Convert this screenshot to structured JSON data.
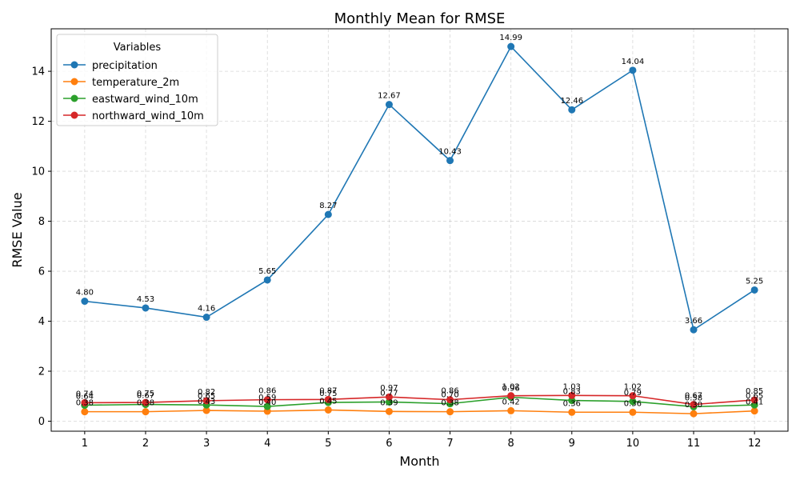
{
  "chart_data": {
    "type": "line",
    "title": "Monthly Mean for RMSE",
    "xlabel": "Month",
    "ylabel": "RMSE Value",
    "x": [
      1,
      2,
      3,
      4,
      5,
      6,
      7,
      8,
      9,
      10,
      11,
      12
    ],
    "x_tick_labels": [
      "1",
      "2",
      "3",
      "4",
      "5",
      "6",
      "7",
      "8",
      "9",
      "10",
      "11",
      "12"
    ],
    "ylim": [
      -0.4,
      15.7
    ],
    "y_ticks": [
      0,
      2,
      4,
      6,
      8,
      10,
      12,
      14
    ],
    "y_tick_labels": [
      "0",
      "2",
      "4",
      "6",
      "8",
      "10",
      "12",
      "14"
    ],
    "grid": true,
    "legend": {
      "title": "Variables",
      "placement": "top-left"
    },
    "series": [
      {
        "name": "precipitation",
        "color": "#1f77b4",
        "values": [
          4.8,
          4.53,
          4.16,
          5.65,
          8.27,
          12.67,
          10.43,
          14.99,
          12.46,
          14.04,
          3.66,
          5.25
        ],
        "labels": [
          "4.80",
          "4.53",
          "4.16",
          "5.65",
          "8.27",
          "12.67",
          "10.43",
          "14.99",
          "12.46",
          "14.04",
          "3.66",
          "5.25"
        ]
      },
      {
        "name": "temperature_2m",
        "color": "#ff7f0e",
        "values": [
          0.38,
          0.38,
          0.43,
          0.4,
          0.45,
          0.39,
          0.38,
          0.42,
          0.36,
          0.36,
          0.3,
          0.41
        ],
        "labels": [
          "0.38",
          "0.38",
          "0.43",
          "0.40",
          "0.45",
          "0.39",
          "0.38",
          "0.42",
          "0.36",
          "0.36",
          "0.30",
          "0.41"
        ]
      },
      {
        "name": "eastward_wind_10m",
        "color": "#2ca02c",
        "values": [
          0.64,
          0.67,
          0.65,
          0.59,
          0.75,
          0.77,
          0.7,
          0.96,
          0.83,
          0.79,
          0.58,
          0.65
        ],
        "labels": [
          "0.64",
          "0.67",
          "0.65",
          "0.59",
          "0.75",
          "0.77",
          "0.70",
          "0.96",
          "0.83",
          "0.79",
          "0.58",
          "0.65"
        ]
      },
      {
        "name": "northward_wind_10m",
        "color": "#d62728",
        "values": [
          0.74,
          0.75,
          0.82,
          0.86,
          0.87,
          0.97,
          0.86,
          1.02,
          1.03,
          1.02,
          0.67,
          0.85
        ],
        "labels": [
          "0.74",
          "0.75",
          "0.82",
          "0.86",
          "0.87",
          "0.97",
          "0.86",
          "1.02",
          "1.03",
          "1.02",
          "0.67",
          "0.85"
        ]
      }
    ]
  }
}
